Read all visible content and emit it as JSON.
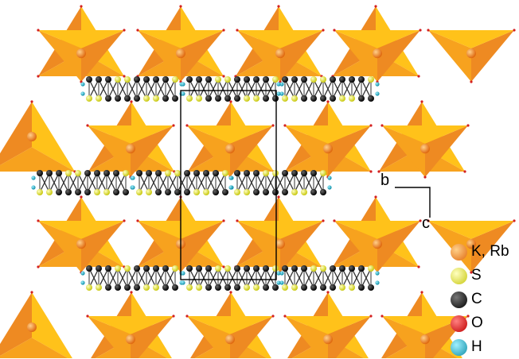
{
  "axes": {
    "b": "b",
    "c": "c"
  },
  "legend": [
    {
      "label": "K, Rb",
      "color": "#f07d1e",
      "icon": "orange-sphere-icon"
    },
    {
      "label": "S",
      "color": "#e8e820",
      "icon": "yellow-sphere-icon"
    },
    {
      "label": "C",
      "color": "#111111",
      "icon": "black-sphere-icon"
    },
    {
      "label": "O",
      "color": "#e01818",
      "icon": "red-sphere-icon"
    },
    {
      "label": "H",
      "color": "#20a8c0",
      "icon": "cyan-sphere-icon"
    }
  ],
  "colors": {
    "polyhedron_light": "#ffc21a",
    "polyhedron_mid": "#f7a21e",
    "polyhedron_dark": "#ee8a22",
    "bond": "#333333",
    "cell": "#000000"
  }
}
